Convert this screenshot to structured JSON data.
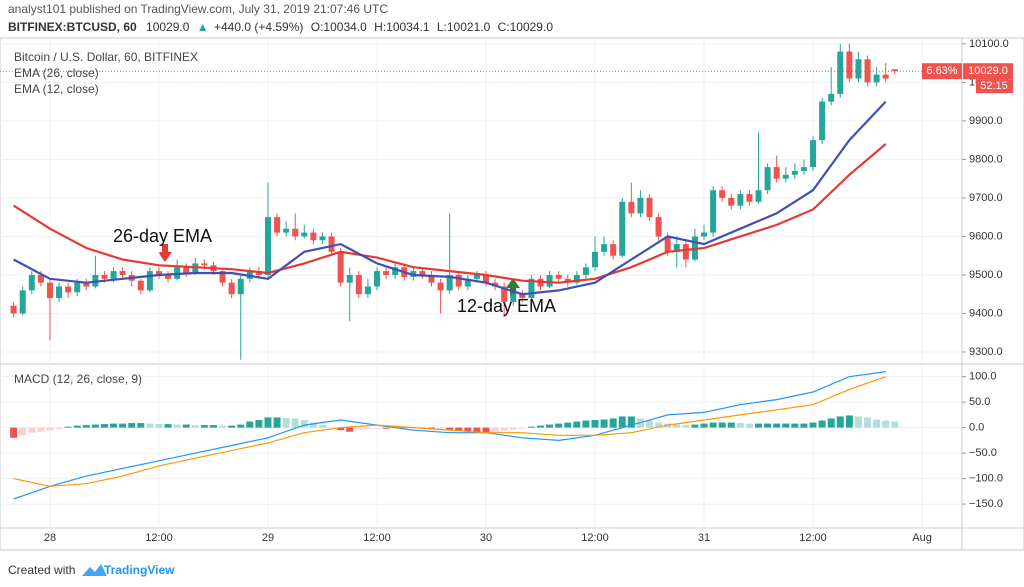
{
  "header": {
    "publisher": "analyst101 published on TradingView.com, July 31, 2019 21:07:46 UTC",
    "symbol": "BITFINEX:BTCUSD, 60",
    "last": "10029.0",
    "arrow": "▲",
    "change": "+440.0 (+4.59%)",
    "ohlc": [
      "O:10034.0",
      "H:10034.1",
      "L:10021.0",
      "C:10029.0"
    ]
  },
  "footer": {
    "created": "Created with",
    "brand": "TradingView"
  },
  "chart_data": [
    {
      "type": "candlestick",
      "title": "Bitcoin / U.S. Dollar, 60, BITFINEX",
      "up_color": "#26a69a",
      "down_color": "#ef5350",
      "x": [
        -4,
        -3,
        -2,
        -1,
        0,
        1,
        2,
        3,
        4,
        5,
        6,
        7,
        8,
        9,
        10,
        11,
        12,
        13,
        14,
        15,
        16,
        17,
        18,
        19,
        20,
        21,
        22,
        23,
        24,
        25,
        26,
        27,
        28,
        29,
        30,
        31,
        32,
        33,
        34,
        35,
        36,
        37,
        38,
        39,
        40,
        41,
        42,
        43,
        44,
        45,
        46,
        47,
        48,
        49,
        50,
        51,
        52,
        53,
        54,
        55,
        56,
        57,
        58,
        59,
        60,
        61,
        62,
        63,
        64,
        65,
        66,
        67,
        68,
        69,
        70,
        71,
        72,
        73,
        74,
        75,
        76,
        77,
        78,
        79,
        80,
        81,
        82,
        83,
        84,
        85,
        86,
        87,
        88,
        89,
        90,
        91,
        92,
        93
      ],
      "open": [
        9420,
        9400,
        9460,
        9500,
        9480,
        9440,
        9470,
        9455,
        9480,
        9470,
        9500,
        9490,
        9510,
        9500,
        9485,
        9460,
        9510,
        9500,
        9490,
        9520,
        9505,
        9530,
        9525,
        9510,
        9480,
        9450,
        9490,
        9510,
        9500,
        9650,
        9610,
        9620,
        9600,
        9610,
        9590,
        9600,
        9560,
        9480,
        9500,
        9450,
        9470,
        9510,
        9500,
        9520,
        9495,
        9510,
        9500,
        9480,
        9460,
        9500,
        9470,
        9490,
        9500,
        9480,
        9470,
        9430,
        9450,
        9440,
        9490,
        9470,
        9500,
        9490,
        9480,
        9500,
        9520,
        9560,
        9580,
        9550,
        9690,
        9660,
        9700,
        9650,
        9600,
        9560,
        9580,
        9540,
        9600,
        9610,
        9720,
        9700,
        9680,
        9710,
        9690,
        9720,
        9780,
        9750,
        9760,
        9770,
        9780,
        9850,
        9950,
        9970,
        10080,
        10010,
        10060,
        10000,
        10020,
        10034
      ],
      "high": [
        9430,
        9470,
        9510,
        9510,
        9490,
        9480,
        9480,
        9490,
        9490,
        9550,
        9510,
        9520,
        9520,
        9510,
        9490,
        9520,
        9520,
        9510,
        9540,
        9530,
        9545,
        9540,
        9535,
        9515,
        9490,
        9500,
        9520,
        9520,
        9740,
        9660,
        9640,
        9660,
        9630,
        9620,
        9610,
        9610,
        9570,
        9520,
        9510,
        9490,
        9520,
        9520,
        9530,
        9530,
        9520,
        9520,
        9510,
        9490,
        9660,
        9510,
        9500,
        9510,
        9510,
        9490,
        9480,
        9460,
        9460,
        9500,
        9500,
        9510,
        9510,
        9500,
        9510,
        9530,
        9600,
        9600,
        9590,
        9700,
        9740,
        9720,
        9710,
        9660,
        9610,
        9600,
        9590,
        9620,
        9630,
        9730,
        9730,
        9710,
        9720,
        9720,
        9870,
        9790,
        9810,
        9780,
        9790,
        9800,
        9860,
        9960,
        10040,
        10100,
        10100,
        10080,
        10070,
        10040,
        10050,
        10034.1
      ],
      "low": [
        9390,
        9395,
        9450,
        9470,
        9330,
        9430,
        9440,
        9445,
        9460,
        9465,
        9480,
        9480,
        9490,
        9470,
        9450,
        9455,
        9490,
        9480,
        9485,
        9495,
        9500,
        9515,
        9500,
        9470,
        9440,
        9280,
        9480,
        9490,
        9495,
        9600,
        9600,
        9590,
        9595,
        9580,
        9580,
        9550,
        9470,
        9380,
        9440,
        9440,
        9460,
        9490,
        9490,
        9485,
        9485,
        9490,
        9470,
        9400,
        9450,
        9460,
        9460,
        9480,
        9470,
        9460,
        9390,
        9420,
        9430,
        9435,
        9460,
        9465,
        9480,
        9470,
        9475,
        9490,
        9510,
        9550,
        9540,
        9545,
        9650,
        9650,
        9640,
        9590,
        9550,
        9520,
        9520,
        9535,
        9590,
        9600,
        9690,
        9670,
        9670,
        9680,
        9685,
        9710,
        9740,
        9740,
        9750,
        9760,
        9770,
        9840,
        9940,
        9960,
        10000,
        10000,
        9990,
        9990,
        10000,
        10021
      ],
      "close": [
        9400,
        9460,
        9500,
        9480,
        9440,
        9470,
        9455,
        9480,
        9470,
        9500,
        9490,
        9510,
        9500,
        9485,
        9460,
        9510,
        9500,
        9490,
        9520,
        9505,
        9530,
        9525,
        9510,
        9480,
        9450,
        9490,
        9510,
        9500,
        9650,
        9610,
        9620,
        9600,
        9610,
        9590,
        9600,
        9560,
        9480,
        9500,
        9450,
        9470,
        9510,
        9500,
        9520,
        9495,
        9510,
        9500,
        9480,
        9460,
        9500,
        9470,
        9490,
        9500,
        9480,
        9470,
        9430,
        9450,
        9440,
        9490,
        9470,
        9500,
        9490,
        9480,
        9500,
        9520,
        9560,
        9580,
        9550,
        9690,
        9660,
        9700,
        9650,
        9600,
        9560,
        9580,
        9540,
        9600,
        9610,
        9720,
        9700,
        9680,
        9710,
        9690,
        9720,
        9780,
        9750,
        9760,
        9770,
        9780,
        9850,
        9950,
        9970,
        10080,
        10010,
        10060,
        10000,
        10020,
        10010,
        10029
      ],
      "series": [
        {
          "name": "EMA (26, close)",
          "color": "#e53935",
          "x": [
            -4,
            0,
            4,
            8,
            12,
            16,
            20,
            24,
            28,
            32,
            36,
            40,
            44,
            48,
            52,
            56,
            60,
            64,
            68,
            72,
            76,
            80,
            84,
            88,
            92
          ],
          "values": [
            9680,
            9620,
            9570,
            9540,
            9525,
            9520,
            9515,
            9505,
            9530,
            9560,
            9545,
            9520,
            9510,
            9500,
            9485,
            9480,
            9490,
            9520,
            9560,
            9570,
            9600,
            9630,
            9670,
            9760,
            9840
          ]
        },
        {
          "name": "EMA (12, close)",
          "color": "#3f51b5",
          "x": [
            -4,
            0,
            4,
            8,
            12,
            16,
            20,
            24,
            28,
            32,
            36,
            40,
            44,
            48,
            52,
            56,
            60,
            64,
            68,
            72,
            76,
            80,
            84,
            88,
            92
          ],
          "values": [
            9540,
            9490,
            9480,
            9490,
            9500,
            9505,
            9505,
            9490,
            9560,
            9580,
            9530,
            9500,
            9495,
            9480,
            9450,
            9460,
            9480,
            9540,
            9600,
            9580,
            9620,
            9660,
            9720,
            9850,
            9950
          ]
        }
      ],
      "annotations": [
        "26-day EMA",
        "12-day EMA"
      ],
      "change_label": "6.63%",
      "last_price_label": "10029.0",
      "countdown": "52:15",
      "xlim": [
        -5.5,
        100.4
      ],
      "xticks": [
        {
          "value": 0,
          "label": "28"
        },
        {
          "value": 12,
          "label": "12:00"
        },
        {
          "value": 24,
          "label": "29"
        },
        {
          "value": 36,
          "label": "12:00"
        },
        {
          "value": 48,
          "label": "30"
        },
        {
          "value": 60,
          "label": "12:00"
        },
        {
          "value": 72,
          "label": "31"
        },
        {
          "value": 84,
          "label": "12:00"
        },
        {
          "value": 96,
          "label": "Aug"
        }
      ],
      "ylim": [
        9274,
        10110
      ],
      "yticks": [
        {
          "value": 9300,
          "label": "9300.0"
        },
        {
          "value": 9400,
          "label": "9400.0"
        },
        {
          "value": 9500,
          "label": "9500.0"
        },
        {
          "value": 9600,
          "label": "9600.0"
        },
        {
          "value": 9700,
          "label": "9700.0"
        },
        {
          "value": 9800,
          "label": "9800.0"
        },
        {
          "value": 9900,
          "label": "9900.0"
        },
        {
          "value": 10000,
          "label": "10000.0"
        },
        {
          "value": 10100,
          "label": "10100.0"
        }
      ],
      "grid": true
    },
    {
      "type": "macd",
      "title": "MACD (12, 26, close, 9)",
      "x": [
        -4,
        -3,
        -2,
        -1,
        0,
        1,
        2,
        3,
        4,
        5,
        6,
        7,
        8,
        9,
        10,
        11,
        12,
        13,
        14,
        15,
        16,
        17,
        18,
        19,
        20,
        21,
        22,
        23,
        24,
        25,
        26,
        27,
        28,
        29,
        30,
        31,
        32,
        33,
        34,
        35,
        36,
        37,
        38,
        39,
        40,
        41,
        42,
        43,
        44,
        45,
        46,
        47,
        48,
        49,
        50,
        51,
        52,
        53,
        54,
        55,
        56,
        57,
        58,
        59,
        60,
        61,
        62,
        63,
        64,
        65,
        66,
        67,
        68,
        69,
        70,
        71,
        72,
        73,
        74,
        75,
        76,
        77,
        78,
        79,
        80,
        81,
        82,
        83,
        84,
        85,
        86,
        87,
        88,
        89,
        90,
        91,
        92,
        93
      ],
      "histogram": [
        -20,
        -15,
        -10,
        -8,
        -5,
        -3,
        2,
        4,
        5,
        6,
        7,
        8,
        8,
        9,
        9,
        8,
        7,
        7,
        6,
        6,
        5,
        5,
        5,
        4,
        4,
        6,
        12,
        15,
        20,
        20,
        19,
        18,
        15,
        10,
        5,
        0,
        -5,
        -8,
        -4,
        -3,
        -2,
        -2,
        -1,
        -1,
        -1,
        -2,
        -3,
        -2,
        -4,
        -6,
        -8,
        -10,
        -10,
        -9,
        -6,
        -4,
        -2,
        2,
        4,
        6,
        8,
        10,
        12,
        14,
        15,
        16,
        18,
        22,
        22,
        18,
        14,
        10,
        8,
        6,
        5,
        6,
        8,
        10,
        10,
        10,
        9,
        8,
        8,
        8,
        8,
        8,
        8,
        8,
        10,
        14,
        18,
        22,
        24,
        22,
        20,
        16,
        14,
        12
      ],
      "histogram_colors": [
        "#26a69a",
        "#b2dfdb",
        "#ef5350",
        "#ffcdd2"
      ],
      "series": [
        {
          "name": "MACD",
          "color": "#2196f3",
          "x": [
            -4,
            0,
            4,
            8,
            12,
            16,
            20,
            24,
            28,
            32,
            36,
            40,
            44,
            48,
            52,
            56,
            60,
            64,
            68,
            72,
            76,
            80,
            84,
            88,
            92
          ],
          "values": [
            -140,
            -115,
            -95,
            -80,
            -65,
            -50,
            -35,
            -20,
            5,
            15,
            5,
            -5,
            -10,
            -10,
            -20,
            -25,
            -15,
            5,
            25,
            30,
            45,
            55,
            70,
            100,
            110
          ]
        },
        {
          "name": "Signal",
          "color": "#ff9800",
          "x": [
            -4,
            0,
            4,
            8,
            12,
            16,
            20,
            24,
            28,
            32,
            36,
            40,
            44,
            48,
            52,
            56,
            60,
            64,
            68,
            72,
            76,
            80,
            84,
            88,
            92
          ],
          "values": [
            -100,
            -115,
            -110,
            -95,
            -75,
            -60,
            -45,
            -30,
            -10,
            0,
            5,
            0,
            -5,
            -10,
            -10,
            -15,
            -15,
            -10,
            5,
            15,
            25,
            35,
            45,
            75,
            100
          ]
        }
      ],
      "ylim": [
        -193,
        119
      ],
      "yticks": [
        {
          "value": 100,
          "label": "100.0"
        },
        {
          "value": 50,
          "label": "50.0"
        },
        {
          "value": 0,
          "label": "0.0"
        },
        {
          "value": -50,
          "label": "−50.0"
        },
        {
          "value": -100,
          "label": "−100.0"
        },
        {
          "value": -150,
          "label": "−150.0"
        }
      ],
      "grid": true
    }
  ]
}
